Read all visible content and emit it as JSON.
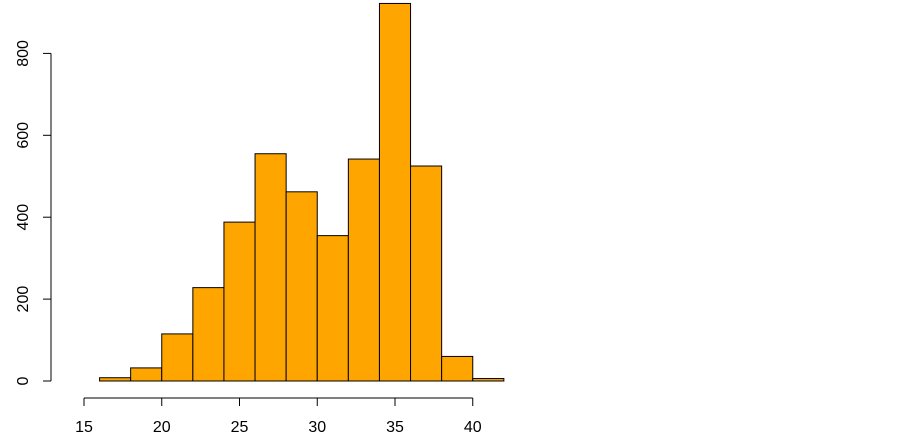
{
  "chart_data": {
    "type": "bar",
    "title": "",
    "xlabel": "",
    "ylabel": "",
    "bin_edges": [
      14,
      16,
      18,
      20,
      22,
      24,
      26,
      28,
      30,
      32,
      34,
      36,
      38,
      40,
      42
    ],
    "values": [
      0,
      8,
      32,
      115,
      228,
      388,
      555,
      462,
      355,
      542,
      922,
      525,
      60,
      6
    ],
    "xlim": [
      14,
      42
    ],
    "ylim": [
      0,
      922
    ],
    "x_ticks": [
      15,
      20,
      25,
      30,
      35,
      40
    ],
    "y_ticks": [
      0,
      200,
      400,
      600,
      800
    ],
    "x_tick_labels": [
      "15",
      "20",
      "25",
      "30",
      "35",
      "40"
    ],
    "y_tick_labels": [
      "0",
      "200",
      "400",
      "600",
      "800"
    ],
    "colors": {
      "bar_fill": "#FFA500",
      "bar_stroke": "#000000"
    },
    "grid": false,
    "legend": "none"
  }
}
